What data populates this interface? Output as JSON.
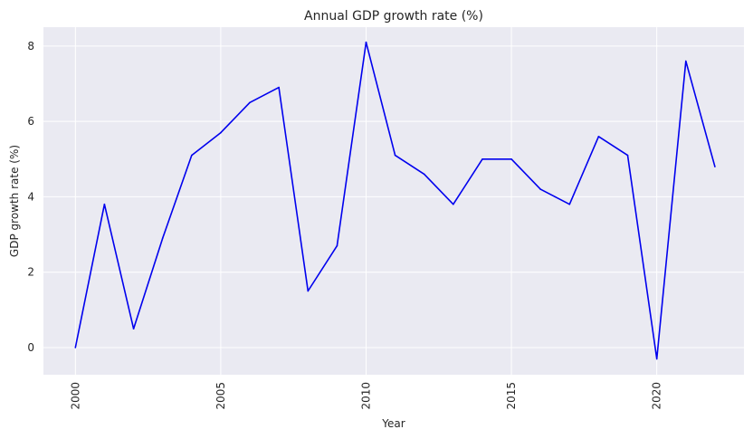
{
  "chart_data": {
    "type": "line",
    "title": "Annual GDP growth rate (%)",
    "xlabel": "Year",
    "ylabel": "GDP growth rate (%)",
    "x": [
      2000,
      2001,
      2002,
      2003,
      2004,
      2005,
      2006,
      2007,
      2008,
      2009,
      2010,
      2011,
      2012,
      2013,
      2014,
      2015,
      2016,
      2017,
      2018,
      2019,
      2020,
      2021,
      2022
    ],
    "series": [
      {
        "values": [
          0.0,
          3.8,
          0.5,
          2.9,
          5.1,
          5.7,
          6.5,
          6.9,
          1.5,
          2.7,
          8.1,
          5.1,
          4.6,
          3.8,
          5.0,
          5.0,
          4.2,
          3.8,
          5.6,
          5.1,
          -0.3,
          7.6,
          4.8
        ],
        "color": "#0000ee"
      }
    ],
    "xticks": [
      "2000",
      "2005",
      "2010",
      "2015",
      "2020"
    ],
    "yticks": [
      "0",
      "2",
      "4",
      "6",
      "8"
    ],
    "xlim": [
      1998.9,
      2023
    ],
    "ylim": [
      -0.72,
      8.5
    ],
    "grid": true,
    "background": "#eaeaf2",
    "grid_color": "#ffffff"
  }
}
